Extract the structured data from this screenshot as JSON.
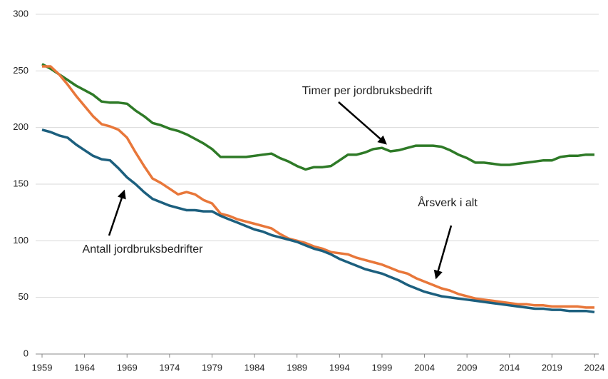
{
  "chart_data": {
    "type": "line",
    "x": [
      1959,
      1960,
      1961,
      1962,
      1963,
      1964,
      1965,
      1966,
      1967,
      1968,
      1969,
      1970,
      1971,
      1972,
      1973,
      1974,
      1975,
      1976,
      1977,
      1978,
      1979,
      1980,
      1981,
      1982,
      1983,
      1984,
      1985,
      1986,
      1987,
      1988,
      1989,
      1990,
      1991,
      1992,
      1993,
      1994,
      1995,
      1996,
      1997,
      1998,
      1999,
      2000,
      2001,
      2002,
      2003,
      2004,
      2005,
      2006,
      2007,
      2008,
      2009,
      2010,
      2011,
      2012,
      2013,
      2014,
      2015,
      2016,
      2017,
      2018,
      2019,
      2020,
      2021,
      2022,
      2023,
      2024
    ],
    "xlim": [
      1959,
      2024
    ],
    "xticks": [
      1959,
      1964,
      1969,
      1974,
      1979,
      1984,
      1989,
      1994,
      1999,
      2004,
      2009,
      2014,
      2019,
      2024
    ],
    "ylim": [
      0,
      300
    ],
    "yticks": [
      0,
      50,
      100,
      150,
      200,
      250,
      300
    ],
    "grid": true,
    "series": [
      {
        "name": "Timer per jordbruksbedrift",
        "color": "#2e7a27",
        "values": [
          256,
          252,
          247,
          242,
          237,
          233,
          229,
          223,
          222,
          222,
          221,
          215,
          210,
          204,
          202,
          199,
          197,
          194,
          190,
          186,
          181,
          174,
          174,
          174,
          174,
          175,
          176,
          177,
          173,
          170,
          166,
          163,
          165,
          165,
          166,
          171,
          176,
          176,
          178,
          181,
          182,
          179,
          180,
          182,
          184,
          184,
          184,
          183,
          180,
          176,
          173,
          169,
          169,
          168,
          167,
          167,
          168,
          169,
          170,
          171,
          171,
          174,
          175,
          175,
          176,
          176
        ]
      },
      {
        "name": "Årsverk i alt",
        "color": "#e8773a",
        "values": [
          254,
          254,
          247,
          238,
          228,
          219,
          210,
          203,
          201,
          198,
          191,
          178,
          166,
          155,
          151,
          146,
          141,
          143,
          141,
          136,
          133,
          124,
          122,
          119,
          117,
          115,
          113,
          111,
          106,
          102,
          100,
          98,
          95,
          93,
          90,
          89,
          88,
          85,
          83,
          81,
          79,
          76,
          73,
          71,
          67,
          64,
          61,
          58,
          56,
          53,
          51,
          49,
          48,
          47,
          46,
          45,
          44,
          44,
          43,
          43,
          42,
          42,
          42,
          42,
          41,
          41
        ]
      },
      {
        "name": "Antall jordbruksbedrifter",
        "color": "#1c5f7e",
        "values": [
          198,
          196,
          193,
          191,
          185,
          180,
          175,
          172,
          171,
          164,
          156,
          150,
          143,
          137,
          134,
          131,
          129,
          127,
          127,
          126,
          126,
          122,
          119,
          116,
          113,
          110,
          108,
          105,
          103,
          101,
          99,
          96,
          93,
          91,
          88,
          84,
          81,
          78,
          75,
          73,
          71,
          68,
          65,
          61,
          58,
          55,
          53,
          51,
          50,
          49,
          48,
          47,
          46,
          45,
          44,
          43,
          42,
          41,
          40,
          40,
          39,
          39,
          38,
          38,
          38,
          37
        ]
      }
    ]
  }
}
